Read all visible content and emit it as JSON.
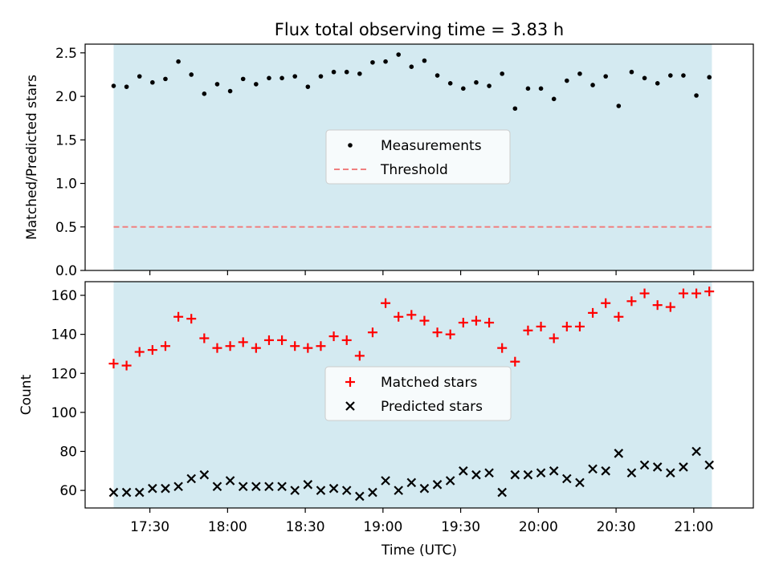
{
  "chart_data": {
    "title": "Flux total observing time = 3.83 h",
    "xlabel": "Time (UTC)",
    "x_range": [
      "17:05",
      "21:23"
    ],
    "observing_window": [
      "17:16",
      "21:07"
    ],
    "x_ticks": [
      "17:30",
      "18:00",
      "18:30",
      "19:00",
      "19:30",
      "20:00",
      "20:30",
      "21:00"
    ],
    "colors": {
      "span": "#d4eaf1",
      "measurements": "#000000",
      "threshold": "#f08080",
      "matched": "#ff0000",
      "predicted": "#000000"
    },
    "times": [
      "17:16",
      "17:21",
      "17:26",
      "17:31",
      "17:36",
      "17:41",
      "17:46",
      "17:51",
      "17:56",
      "18:01",
      "18:06",
      "18:11",
      "18:16",
      "18:21",
      "18:26",
      "18:31",
      "18:36",
      "18:41",
      "18:46",
      "18:51",
      "18:56",
      "19:01",
      "19:06",
      "19:11",
      "19:16",
      "19:21",
      "19:26",
      "19:31",
      "19:36",
      "19:41",
      "19:46",
      "19:51",
      "19:56",
      "20:01",
      "20:06",
      "20:11",
      "20:16",
      "20:21",
      "20:26",
      "20:31",
      "20:36",
      "20:41",
      "20:46",
      "20:51",
      "20:56",
      "21:01",
      "21:06"
    ],
    "panels": [
      {
        "type": "scatter",
        "ylabel": "Matched/Predicted stars",
        "ylim": [
          0,
          2.6
        ],
        "y_ticks": [
          "0.0",
          "0.5",
          "1.0",
          "1.5",
          "2.0",
          "2.5"
        ],
        "legend_position": "center",
        "series": [
          {
            "name": "Measurements",
            "marker": "dot",
            "values": [
              2.12,
              2.11,
              2.23,
              2.16,
              2.2,
              2.4,
              2.25,
              2.03,
              2.14,
              2.06,
              2.2,
              2.14,
              2.21,
              2.21,
              2.23,
              2.11,
              2.23,
              2.28,
              2.28,
              2.26,
              2.39,
              2.4,
              2.48,
              2.34,
              2.41,
              2.24,
              2.15,
              2.09,
              2.16,
              2.12,
              2.26,
              1.86,
              2.09,
              2.09,
              1.97,
              2.18,
              2.26,
              2.13,
              2.23,
              1.89,
              2.28,
              2.21,
              2.15,
              2.24,
              2.24,
              2.01,
              2.22
            ]
          },
          {
            "name": "Threshold",
            "marker": "dashed-line",
            "value": 0.5
          }
        ]
      },
      {
        "type": "scatter",
        "ylabel": "Count",
        "ylim": [
          51,
          167
        ],
        "y_ticks": [
          "60",
          "80",
          "100",
          "120",
          "140",
          "160"
        ],
        "legend_position": "center",
        "series": [
          {
            "name": "Matched stars",
            "marker": "plus",
            "values": [
              125,
              124,
              131,
              132,
              134,
              149,
              148,
              138,
              133,
              134,
              136,
              133,
              137,
              137,
              134,
              133,
              134,
              139,
              137,
              129,
              141,
              156,
              149,
              150,
              147,
              141,
              140,
              146,
              147,
              146,
              133,
              126,
              142,
              144,
              138,
              144,
              144,
              151,
              156,
              149,
              157,
              161,
              155,
              154,
              161,
              161,
              162
            ]
          },
          {
            "name": "Predicted stars",
            "marker": "x",
            "values": [
              59,
              59,
              59,
              61,
              61,
              62,
              66,
              68,
              62,
              65,
              62,
              62,
              62,
              62,
              60,
              63,
              60,
              61,
              60,
              57,
              59,
              65,
              60,
              64,
              61,
              63,
              65,
              70,
              68,
              69,
              59,
              68,
              68,
              69,
              70,
              66,
              64,
              71,
              70,
              79,
              69,
              73,
              72,
              69,
              72,
              80,
              73
            ]
          }
        ]
      }
    ]
  }
}
